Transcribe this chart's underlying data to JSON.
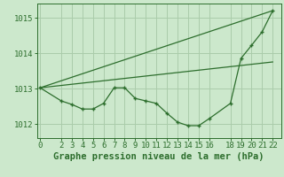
{
  "background_color": "#cce8cc",
  "grid_color": "#aaccaa",
  "line_color": "#2d6e2d",
  "marker_color": "#2d6e2d",
  "title": "Graphe pression niveau de la mer (hPa)",
  "title_fontsize": 7.5,
  "tick_fontsize": 6.5,
  "ylim": [
    1011.6,
    1015.4
  ],
  "yticks": [
    1012,
    1013,
    1014,
    1015
  ],
  "xticks": [
    0,
    2,
    3,
    4,
    5,
    6,
    7,
    8,
    9,
    10,
    11,
    12,
    13,
    14,
    15,
    16,
    18,
    19,
    20,
    21,
    22
  ],
  "xlim": [
    -0.3,
    22.8
  ],
  "series1": {
    "x": [
      0,
      22
    ],
    "y": [
      1013.02,
      1015.2
    ]
  },
  "series2": {
    "x": [
      0,
      22
    ],
    "y": [
      1013.02,
      1013.75
    ]
  },
  "series3": {
    "x": [
      0,
      2,
      3,
      4,
      5,
      6,
      7,
      8,
      9,
      10,
      11,
      12,
      13,
      14,
      15,
      16,
      18,
      19,
      20,
      21,
      22
    ],
    "y": [
      1013.02,
      1012.65,
      1012.55,
      1012.42,
      1012.42,
      1012.58,
      1013.02,
      1013.02,
      1012.72,
      1012.65,
      1012.58,
      1012.3,
      1012.05,
      1011.95,
      1011.95,
      1012.15,
      1012.58,
      1013.85,
      1014.22,
      1014.6,
      1015.2
    ]
  }
}
